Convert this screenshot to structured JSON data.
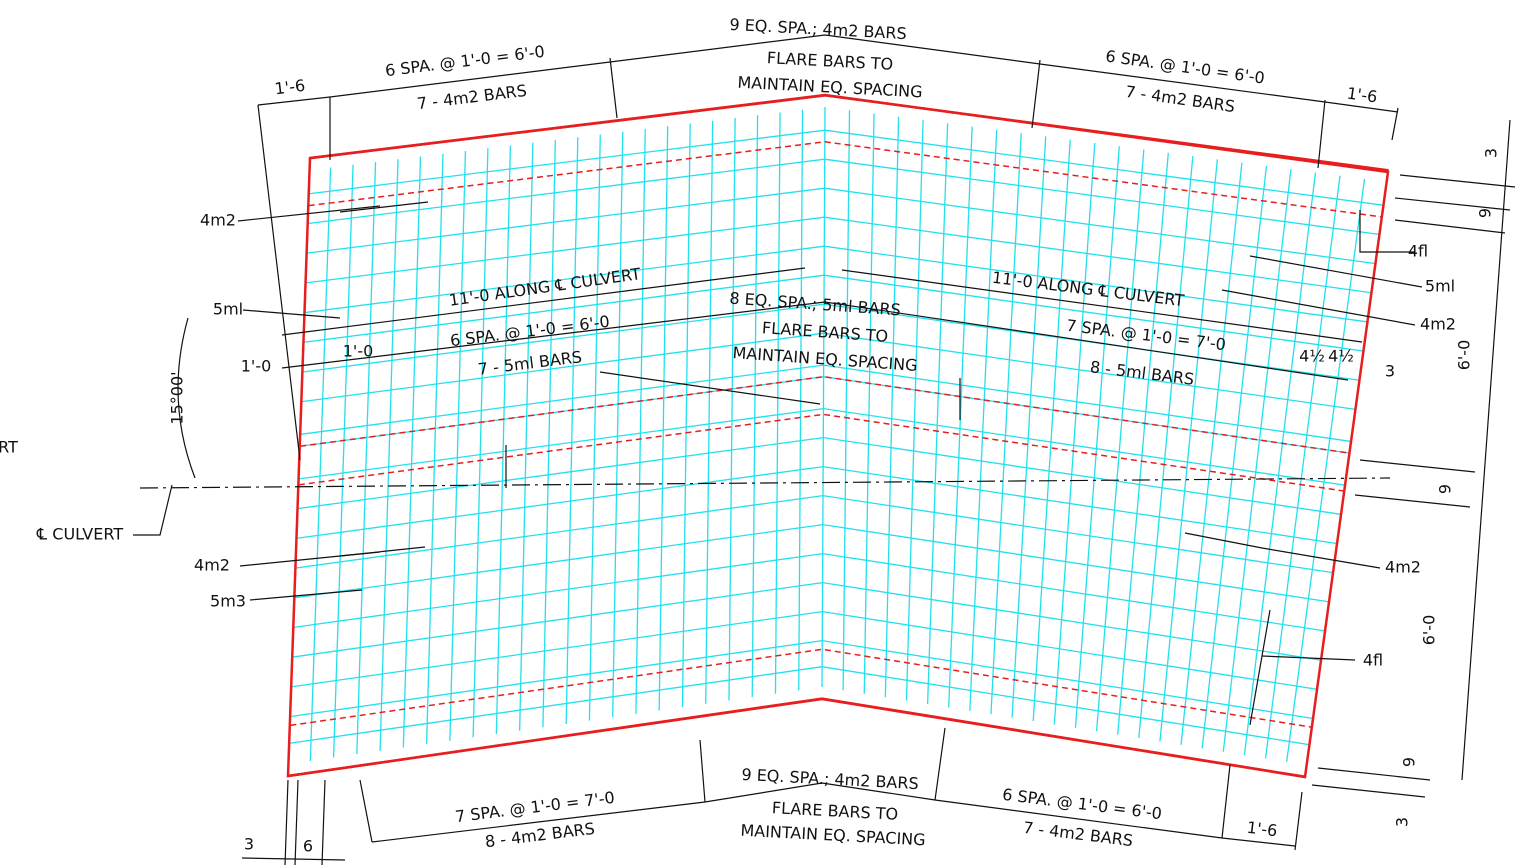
{
  "labels": [
    "9 EQ. SPA.; 4m2 BARS",
    "FLARE BARS TO",
    "MAINTAIN EQ. SPACING",
    "6 SPA. @ 1'-0 = 6'-0",
    "7 - 4m2 BARS",
    "1'-6",
    "6 SPA. @ 1'-0 = 6'-0",
    "7 - 4m2 BARS",
    "1'-6",
    "3",
    "9",
    "6'-0",
    "9",
    "6'-0",
    "9",
    "3",
    "4m2",
    "4fl",
    "5ml",
    "4m2",
    "11'-0 ALONG ℄ CULVERT",
    "11'-0 ALONG ℄ CULVERT",
    "8 EQ. SPA.; 5ml BARS",
    "FLARE BARS TO",
    "MAINTAIN EQ. SPACING",
    "6 SPA. @ 1'-0 = 6'-0",
    "7 - 5ml BARS",
    "7 SPA. @ 1'-0 = 7'-0",
    "8 - 5ml BARS",
    "5ml",
    "1'-0",
    "1'-0",
    "4½",
    "4½",
    "3",
    "15°00'",
    "℄ CULVERT",
    "RT",
    "4m2",
    "5m3",
    "4m2",
    "4fl",
    "7 SPA. @ 1'-0 = 7'-0",
    "8 - 4m2 BARS",
    "9 EQ. SPA.; 4m2 BARS",
    "FLARE BARS TO",
    "MAINTAIN EQ. SPACING",
    "6 SPA. @ 1'-0 = 6'-0",
    "7 - 4m2 BARS",
    "1'-6",
    "3",
    "6"
  ]
}
